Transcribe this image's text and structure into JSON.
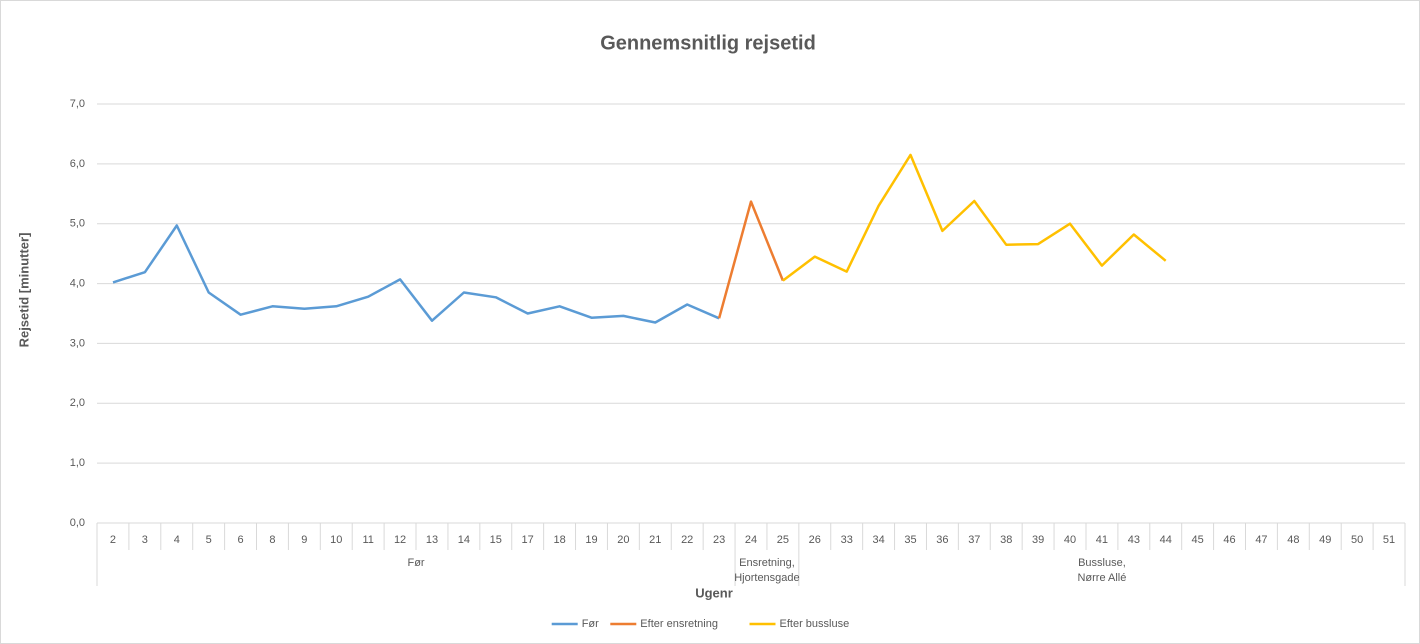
{
  "chart_data": {
    "type": "line",
    "title": "Gennemsnitlig rejsetid",
    "y_label": "Rejsetid [minutter]",
    "x_label": "Ugenr",
    "categories": [
      "2",
      "3",
      "4",
      "5",
      "6",
      "8",
      "9",
      "10",
      "11",
      "12",
      "13",
      "14",
      "15",
      "17",
      "18",
      "19",
      "20",
      "21",
      "22",
      "23",
      "24",
      "25",
      "26",
      "33",
      "34",
      "35",
      "36",
      "37",
      "38",
      "39",
      "40",
      "41",
      "43",
      "44",
      "45",
      "46",
      "47",
      "48",
      "49",
      "50",
      "51"
    ],
    "groups": [
      {
        "label": [
          "Før"
        ],
        "span": 20
      },
      {
        "label": [
          "Ensretning,",
          "Hjortensgade"
        ],
        "span": 2
      },
      {
        "label": [
          "Bussluse,",
          "Nørre Allé"
        ],
        "span": 19
      }
    ],
    "series": [
      {
        "name": "Før",
        "color": "#5b9bd5",
        "values": [
          4.02,
          4.19,
          4.97,
          3.85,
          3.48,
          3.62,
          3.58,
          3.62,
          3.78,
          4.07,
          3.38,
          3.85,
          3.77,
          3.5,
          3.62,
          3.43,
          3.46,
          3.35,
          3.65,
          3.42,
          null,
          null,
          null,
          null,
          null,
          null,
          null,
          null,
          null,
          null,
          null,
          null,
          null,
          null,
          null,
          null,
          null,
          null,
          null,
          null,
          null
        ]
      },
      {
        "name": "Efter ensretning",
        "color": "#ed7d31",
        "values": [
          null,
          null,
          null,
          null,
          null,
          null,
          null,
          null,
          null,
          null,
          null,
          null,
          null,
          null,
          null,
          null,
          null,
          null,
          null,
          3.42,
          5.37,
          4.05,
          null,
          null,
          null,
          null,
          null,
          null,
          null,
          null,
          null,
          null,
          null,
          null,
          null,
          null,
          null,
          null,
          null,
          null,
          null
        ]
      },
      {
        "name": "Efter bussluse",
        "color": "#ffc000",
        "values": [
          null,
          null,
          null,
          null,
          null,
          null,
          null,
          null,
          null,
          null,
          null,
          null,
          null,
          null,
          null,
          null,
          null,
          null,
          null,
          null,
          null,
          4.05,
          4.45,
          4.2,
          5.3,
          6.15,
          4.88,
          5.38,
          4.65,
          4.66,
          5.0,
          4.3,
          4.82,
          4.38,
          null,
          null,
          null,
          null,
          null,
          null,
          null
        ]
      }
    ],
    "ylim": [
      0,
      7
    ],
    "yticks": [
      {
        "value": 0,
        "label": "0,0"
      },
      {
        "value": 1,
        "label": "1,0"
      },
      {
        "value": 2,
        "label": "2,0"
      },
      {
        "value": 3,
        "label": "3,0"
      },
      {
        "value": 4,
        "label": "4,0"
      },
      {
        "value": 5,
        "label": "5,0"
      },
      {
        "value": 6,
        "label": "6,0"
      },
      {
        "value": 7,
        "label": "7,0"
      }
    ],
    "grid": true,
    "legend": "bottom"
  }
}
